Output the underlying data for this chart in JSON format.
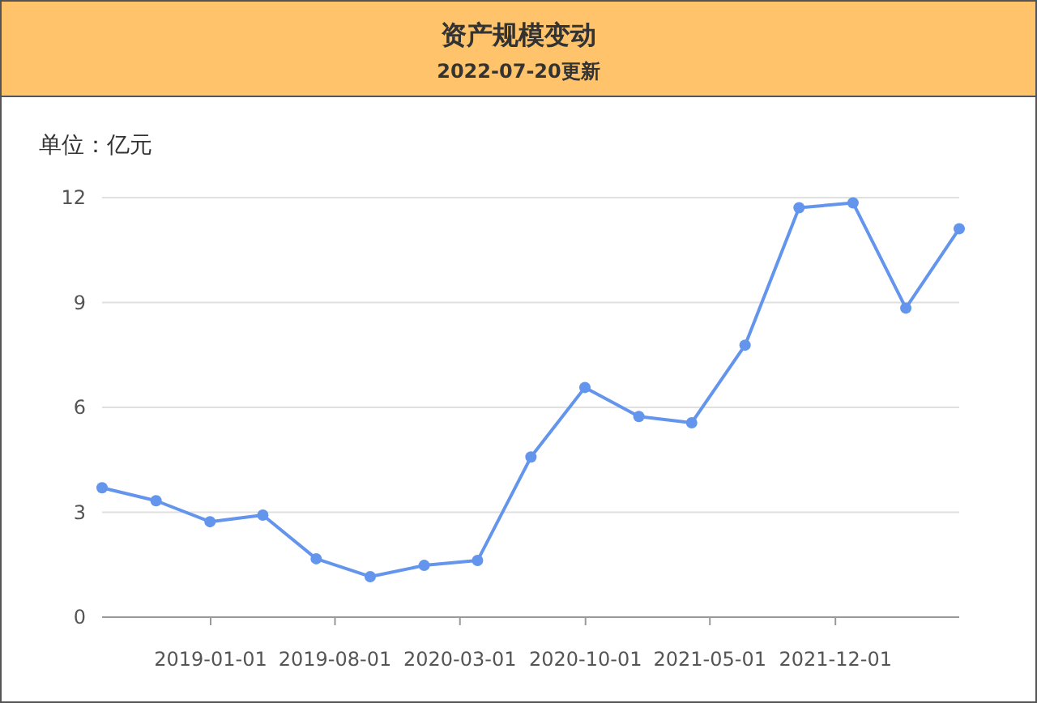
{
  "chart_data": {
    "type": "line",
    "title": "资产规模变动",
    "subtitle": "2022-07-20更新",
    "ylabel": "单位：亿元",
    "x": [
      "2018-06-30",
      "2018-09-30",
      "2018-12-31",
      "2019-03-31",
      "2019-06-30",
      "2019-09-30",
      "2019-12-31",
      "2020-03-31",
      "2020-06-30",
      "2020-09-30",
      "2020-12-31",
      "2021-03-31",
      "2021-06-30",
      "2021-09-30",
      "2021-12-31",
      "2022-03-31",
      "2022-06-30"
    ],
    "series": [
      {
        "color": "#6495ed",
        "values": [
          3.7,
          3.33,
          2.73,
          2.92,
          1.67,
          1.16,
          1.48,
          1.62,
          4.58,
          6.57,
          5.74,
          5.56,
          7.78,
          11.71,
          11.85,
          8.84,
          11.11
        ]
      }
    ],
    "xlim": [
      "2018-06-30",
      "2022-06-30"
    ],
    "xticks": [
      "2019-01-01",
      "2019-08-01",
      "2020-03-01",
      "2020-10-01",
      "2021-05-01",
      "2021-12-01"
    ],
    "ylim": [
      0,
      12
    ],
    "yticks": [
      0,
      3,
      6,
      9,
      12
    ],
    "grid": "y",
    "marker": "circle",
    "line_style": "solid"
  }
}
